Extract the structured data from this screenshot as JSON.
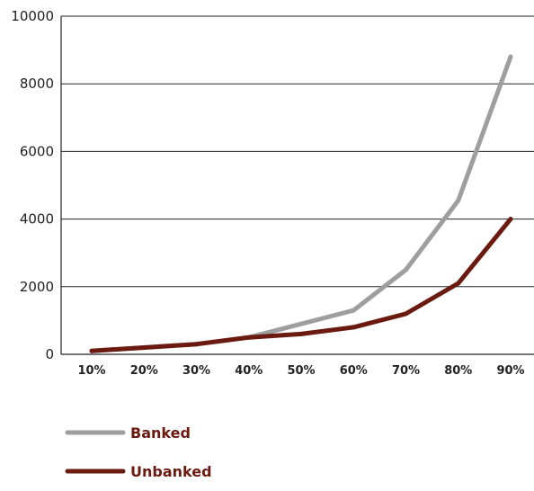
{
  "chart_data": {
    "type": "line",
    "categories": [
      "10%",
      "20%",
      "30%",
      "40%",
      "50%",
      "60%",
      "70%",
      "80%",
      "90%"
    ],
    "series": [
      {
        "name": "Banked",
        "color": "#9e9e9e",
        "values": [
          100,
          200,
          300,
          500,
          900,
          1300,
          2500,
          4550,
          8800
        ]
      },
      {
        "name": "Unbanked",
        "color": "#6b1a10",
        "values": [
          100,
          200,
          300,
          500,
          600,
          800,
          1200,
          2100,
          4000
        ]
      }
    ],
    "ylim": [
      0,
      10000
    ],
    "yticks": [
      "0",
      "2000",
      "4000",
      "6000",
      "8000",
      "10000"
    ],
    "ytick_values": [
      0,
      2000,
      4000,
      6000,
      8000,
      10000
    ],
    "grid": true,
    "legend_position": "bottom-left"
  }
}
